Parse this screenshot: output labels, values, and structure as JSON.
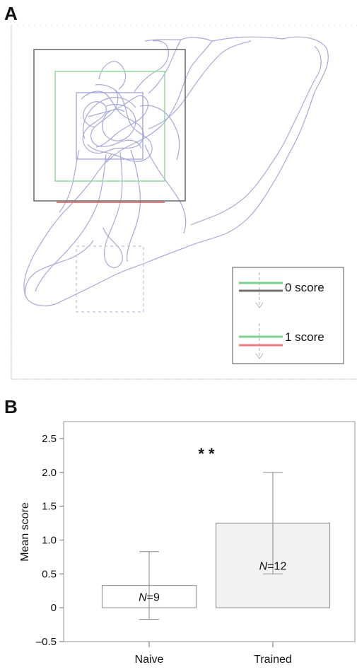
{
  "panel_a": {
    "label": "A",
    "legend": [
      {
        "text": "0 score",
        "line_colors": [
          "#7fcf8f",
          "#707070"
        ]
      },
      {
        "text": "1 score",
        "line_colors": [
          "#7fcf8f",
          "#e87d80"
        ]
      }
    ],
    "colors": {
      "track": "#a9a9d8",
      "outer_box": "#707070",
      "middle_box": "#8fd49a",
      "inner_box": "#9a9ad6",
      "threshold": "#e87d80",
      "dashed_box": "#c9c9e6"
    }
  },
  "panel_b": {
    "label": "B"
  },
  "chart_data": {
    "type": "bar",
    "categories": [
      "Naive",
      "Trained"
    ],
    "values": [
      0.33,
      1.25
    ],
    "error_low": [
      -0.17,
      0.5
    ],
    "error_high": [
      0.83,
      2.0
    ],
    "n_labels": [
      {
        "italic": "N",
        "rest": "=9"
      },
      {
        "italic": "N",
        "rest": "=12"
      }
    ],
    "bar_fill": [
      "#ffffff",
      "#f1f2f3"
    ],
    "ylabel": "Mean score",
    "xlabel": "",
    "ylim": [
      -0.5,
      2.5
    ],
    "yticks": [
      "2.5",
      "2.0",
      "1.5",
      "1.0",
      "0.5",
      "0",
      "–0.5"
    ],
    "ytick_values": [
      2.5,
      2.0,
      1.5,
      1.0,
      0.5,
      0,
      -0.5
    ],
    "significance": "* *",
    "grid": false
  }
}
